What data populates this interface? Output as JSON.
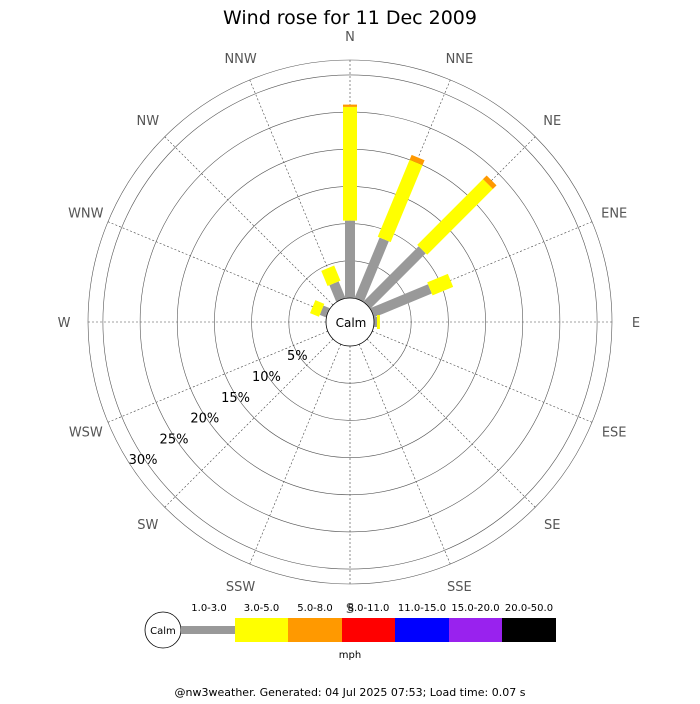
{
  "chart_data": {
    "type": "wind-rose",
    "title": "Wind rose for 11 Dec 2009",
    "center_label": "Calm",
    "directions": [
      "N",
      "NNE",
      "NE",
      "ENE",
      "E",
      "ESE",
      "SE",
      "SSE",
      "S",
      "SSW",
      "SW",
      "WSW",
      "W",
      "WNW",
      "NW",
      "NNW"
    ],
    "radial_ticks": [
      5,
      10,
      15,
      20,
      25,
      30
    ],
    "radial_tick_labels": [
      "5%",
      "10%",
      "15%",
      "20%",
      "25%",
      "30%"
    ],
    "rmax": 32,
    "units": "mph",
    "speed_bins": [
      {
        "label": "1.0-3.0",
        "color": "#999999"
      },
      {
        "label": "3.0-5.0",
        "color": "#ffff00"
      },
      {
        "label": "5.0-8.0",
        "color": "#ff9900"
      },
      {
        "label": "8.0-11.0",
        "color": "#ff0000"
      },
      {
        "label": "11.0-15.0",
        "color": "#0000ff"
      },
      {
        "label": "15.0-20.0",
        "color": "#9922ee"
      },
      {
        "label": "20.0-50.0",
        "color": "#000000"
      }
    ],
    "series": [
      {
        "direction": "N",
        "values": [
          10.4,
          15.3,
          0.3,
          0,
          0,
          0,
          0
        ]
      },
      {
        "direction": "NNE",
        "values": [
          8.8,
          11.2,
          0.7,
          0,
          0,
          0,
          0
        ]
      },
      {
        "direction": "NE",
        "values": [
          10.5,
          12.5,
          0.7,
          0,
          0,
          0,
          0
        ]
      },
      {
        "direction": "ENE",
        "values": [
          8.4,
          3.0,
          0,
          0,
          0,
          0,
          0
        ]
      },
      {
        "direction": "E",
        "values": [
          0.4,
          0.4,
          0,
          0,
          0,
          0,
          0
        ]
      },
      {
        "direction": "ESE",
        "values": [
          0,
          0,
          0,
          0,
          0,
          0,
          0
        ]
      },
      {
        "direction": "SE",
        "values": [
          0,
          0,
          0,
          0,
          0,
          0,
          0
        ]
      },
      {
        "direction": "SSE",
        "values": [
          0,
          0,
          0,
          0,
          0,
          0,
          0
        ]
      },
      {
        "direction": "S",
        "values": [
          0,
          0,
          0,
          0,
          0,
          0,
          0
        ]
      },
      {
        "direction": "SSW",
        "values": [
          0,
          0,
          0,
          0,
          0,
          0,
          0
        ]
      },
      {
        "direction": "SW",
        "values": [
          0,
          0,
          0,
          0,
          0,
          0,
          0
        ]
      },
      {
        "direction": "WSW",
        "values": [
          0,
          0,
          0,
          0,
          0,
          0,
          0
        ]
      },
      {
        "direction": "W",
        "values": [
          0,
          0,
          0,
          0,
          0,
          0,
          0
        ]
      },
      {
        "direction": "WNW",
        "values": [
          0.9,
          1.3,
          0,
          0,
          0,
          0,
          0
        ]
      },
      {
        "direction": "NW",
        "values": [
          0,
          0,
          0,
          0,
          0,
          0,
          0
        ]
      },
      {
        "direction": "NNW",
        "values": [
          2.4,
          2.2,
          0,
          0,
          0,
          0,
          0
        ]
      }
    ]
  },
  "footer": {
    "credit": "@nw3weather.  Generated: 04 Jul 2025 07:53; Load time: 0.07 s"
  }
}
